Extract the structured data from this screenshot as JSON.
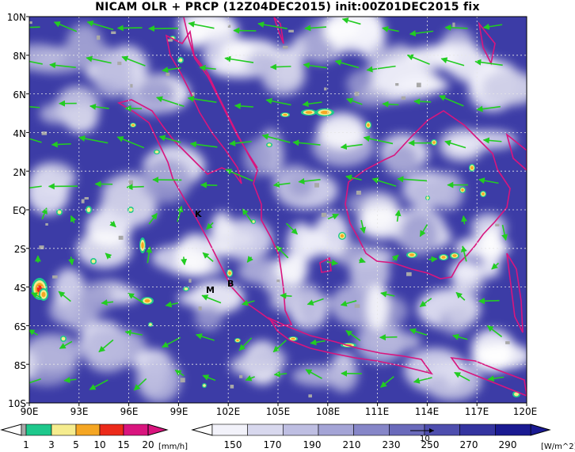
{
  "title": "NICAM OLR + PRCP (12Z04DEC2015) init:00Z01DEC2015 fix",
  "map": {
    "lon_labels": [
      "90E",
      "93E",
      "96E",
      "99E",
      "102E",
      "105E",
      "108E",
      "111E",
      "114E",
      "117E",
      "120E"
    ],
    "lat_labels": [
      "10N",
      "8N",
      "6N",
      "4N",
      "2N",
      "EQ",
      "2S",
      "4S",
      "6S",
      "8S",
      "10S"
    ],
    "markers": [
      "K",
      "M",
      "B"
    ],
    "coastline_color": "#d9157e",
    "wind_color": "#22cc22"
  },
  "precip_legend": {
    "ticks": [
      "1",
      "3",
      "5",
      "10",
      "15",
      "20"
    ],
    "unit": "[mm/h]",
    "colors": [
      "#a8a8a8",
      "#1ec88c",
      "#f5ec8e",
      "#f5a623",
      "#ec2a1a",
      "#d9157e"
    ]
  },
  "olr_legend": {
    "ticks": [
      "150",
      "170",
      "190",
      "210",
      "230",
      "250",
      "270",
      "290"
    ],
    "unit": "[W/m^2]",
    "colors": [
      "#f2f2fa",
      "#d8d8ee",
      "#bebee2",
      "#a4a4d6",
      "#8686c8",
      "#6a6abb",
      "#4e4eae",
      "#3434a0",
      "#1a1a92"
    ],
    "ref_vector_label": "10"
  }
}
